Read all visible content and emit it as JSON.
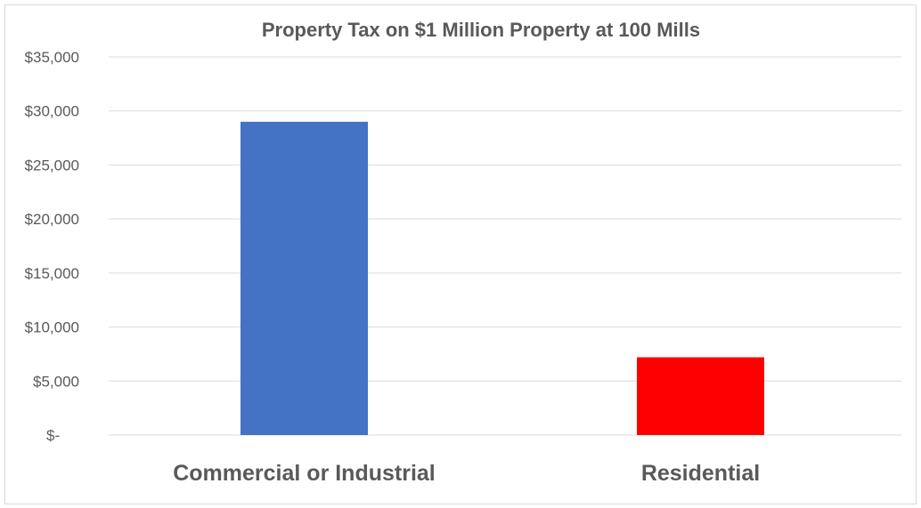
{
  "chart_data": {
    "type": "bar",
    "title": "Property Tax  on $1 Million Property at 100 Mills",
    "xlabel": "",
    "ylabel": "",
    "categories": [
      "Commercial or Industrial",
      "Residential"
    ],
    "values": [
      29000,
      7200
    ],
    "bar_colors": [
      "#4472c4",
      "#ff0000"
    ],
    "ylim": [
      0,
      35000
    ],
    "y_ticks": [
      0,
      5000,
      10000,
      15000,
      20000,
      25000,
      30000,
      35000
    ],
    "y_tick_labels": [
      "$-",
      "$5,000",
      "$10,000",
      "$15,000",
      "$20,000",
      "$25,000",
      "$30,000",
      "$35,000"
    ],
    "grid": true,
    "legend": "none"
  }
}
